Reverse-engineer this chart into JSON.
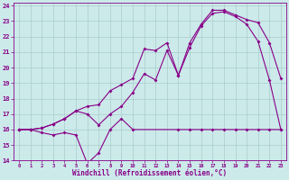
{
  "xlabel": "Windchill (Refroidissement éolien,°C)",
  "xlim_min": -0.5,
  "xlim_max": 23.5,
  "ylim_min": 14,
  "ylim_max": 24.2,
  "xticks": [
    0,
    1,
    2,
    3,
    4,
    5,
    6,
    7,
    8,
    9,
    10,
    11,
    12,
    13,
    14,
    15,
    16,
    17,
    18,
    19,
    20,
    21,
    22,
    23
  ],
  "yticks": [
    14,
    15,
    16,
    17,
    18,
    19,
    20,
    21,
    22,
    23,
    24
  ],
  "bg_color": "#cceaea",
  "line_color": "#880088",
  "grid_color": "#aacccc",
  "line1_x": [
    0,
    1,
    2,
    3,
    4,
    5,
    6,
    7,
    8,
    9,
    10,
    14,
    15,
    16,
    17,
    18,
    19,
    20,
    21,
    22,
    23
  ],
  "line1_y": [
    16.0,
    16.0,
    15.8,
    15.65,
    15.8,
    15.65,
    13.8,
    14.5,
    16.0,
    16.7,
    16.0,
    16.0,
    16.0,
    16.0,
    16.0,
    16.0,
    16.0,
    16.0,
    16.0,
    16.0,
    16.0
  ],
  "line2_x": [
    0,
    1,
    2,
    3,
    4,
    5,
    6,
    7,
    8,
    9,
    10,
    11,
    12,
    13,
    14,
    15,
    16,
    17,
    18,
    19,
    20,
    21,
    22,
    23
  ],
  "line2_y": [
    16.0,
    16.0,
    16.1,
    16.35,
    16.7,
    17.2,
    17.5,
    17.6,
    18.5,
    18.9,
    19.3,
    21.2,
    21.1,
    21.6,
    19.5,
    21.3,
    22.7,
    23.5,
    23.6,
    23.3,
    22.8,
    21.7,
    19.2,
    16.0
  ],
  "line3_x": [
    0,
    1,
    2,
    3,
    4,
    5,
    6,
    7,
    8,
    9,
    10,
    11,
    12,
    13,
    14,
    15,
    16,
    17,
    18,
    19,
    20,
    21,
    22,
    23
  ],
  "line3_y": [
    16.0,
    16.0,
    16.1,
    16.35,
    16.7,
    17.2,
    17.0,
    16.3,
    17.0,
    17.5,
    18.4,
    19.6,
    19.2,
    21.1,
    19.5,
    21.6,
    22.8,
    23.7,
    23.7,
    23.4,
    23.1,
    22.9,
    21.6,
    19.3
  ]
}
